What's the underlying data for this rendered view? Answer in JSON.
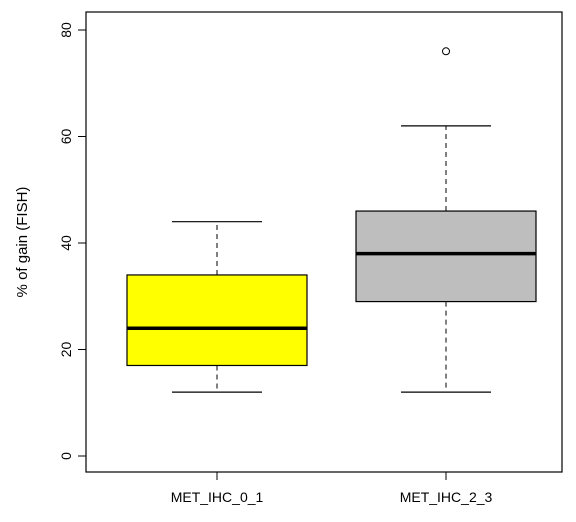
{
  "chart_data": {
    "type": "boxplot",
    "title": "",
    "xlabel": "",
    "ylabel": "% of gain (FISH)",
    "ylim": [
      -2,
      82
    ],
    "yticks": [
      0,
      20,
      40,
      60,
      80
    ],
    "grid": false,
    "legend": "none",
    "categories": [
      "MET_IHC_0_1",
      "MET_IHC_2_3"
    ],
    "boxes": [
      {
        "category": "MET_IHC_0_1",
        "whisker_low": 12,
        "q1": 17,
        "median": 24,
        "q3": 34,
        "whisker_high": 44,
        "outliers": [],
        "fill": "#ffff00"
      },
      {
        "category": "MET_IHC_2_3",
        "whisker_low": 12,
        "q1": 29,
        "median": 38,
        "q3": 46,
        "whisker_high": 62,
        "outliers": [
          76
        ],
        "fill": "#bebebe"
      }
    ]
  }
}
